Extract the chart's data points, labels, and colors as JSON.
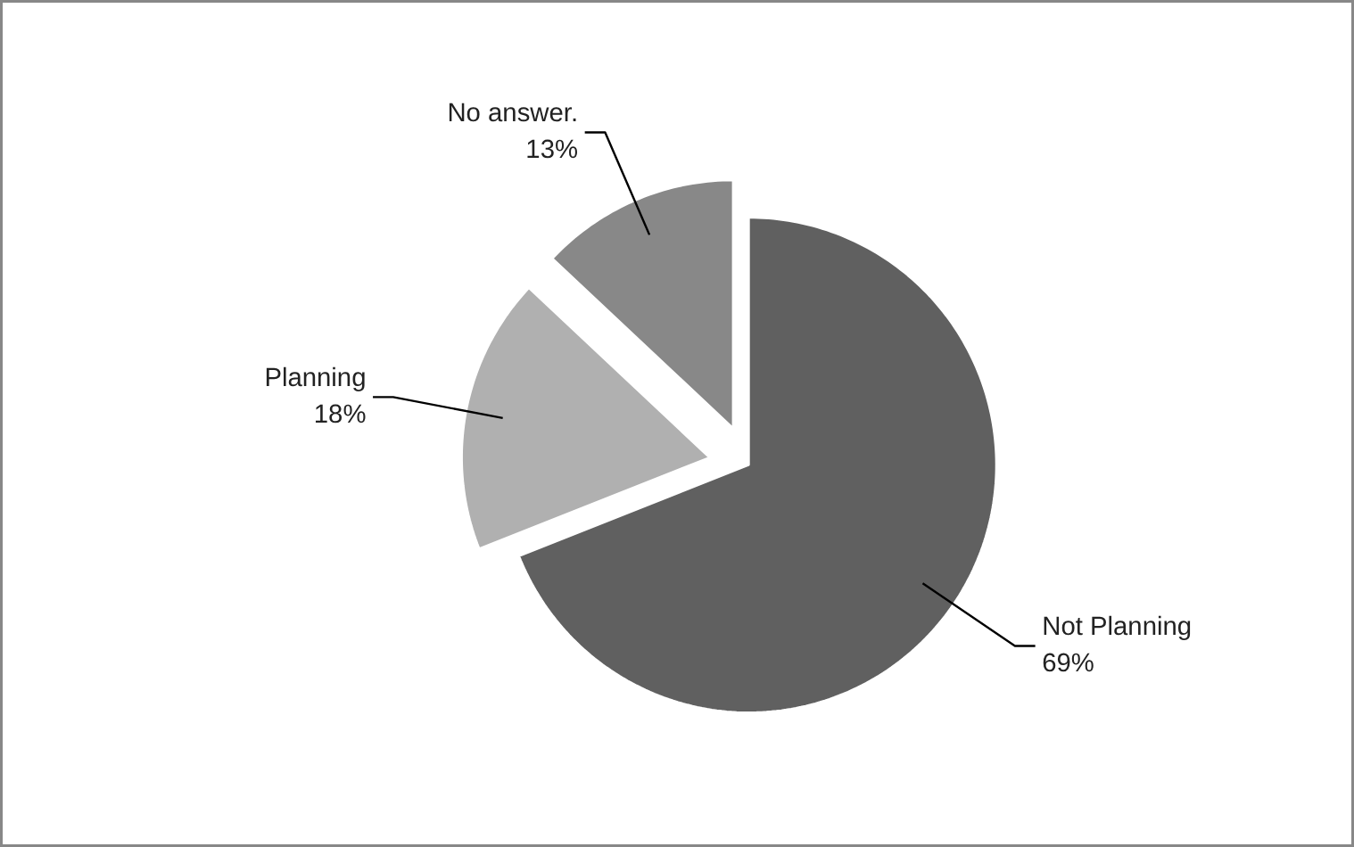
{
  "chart_data": {
    "type": "pie",
    "categories": [
      "Not Planning",
      "Planning",
      "No answer."
    ],
    "values": [
      69,
      18,
      13
    ],
    "colors": [
      "#606060",
      "#b0b0b0",
      "#888888"
    ],
    "value_labels": [
      "69%",
      "18%",
      "13%"
    ]
  }
}
